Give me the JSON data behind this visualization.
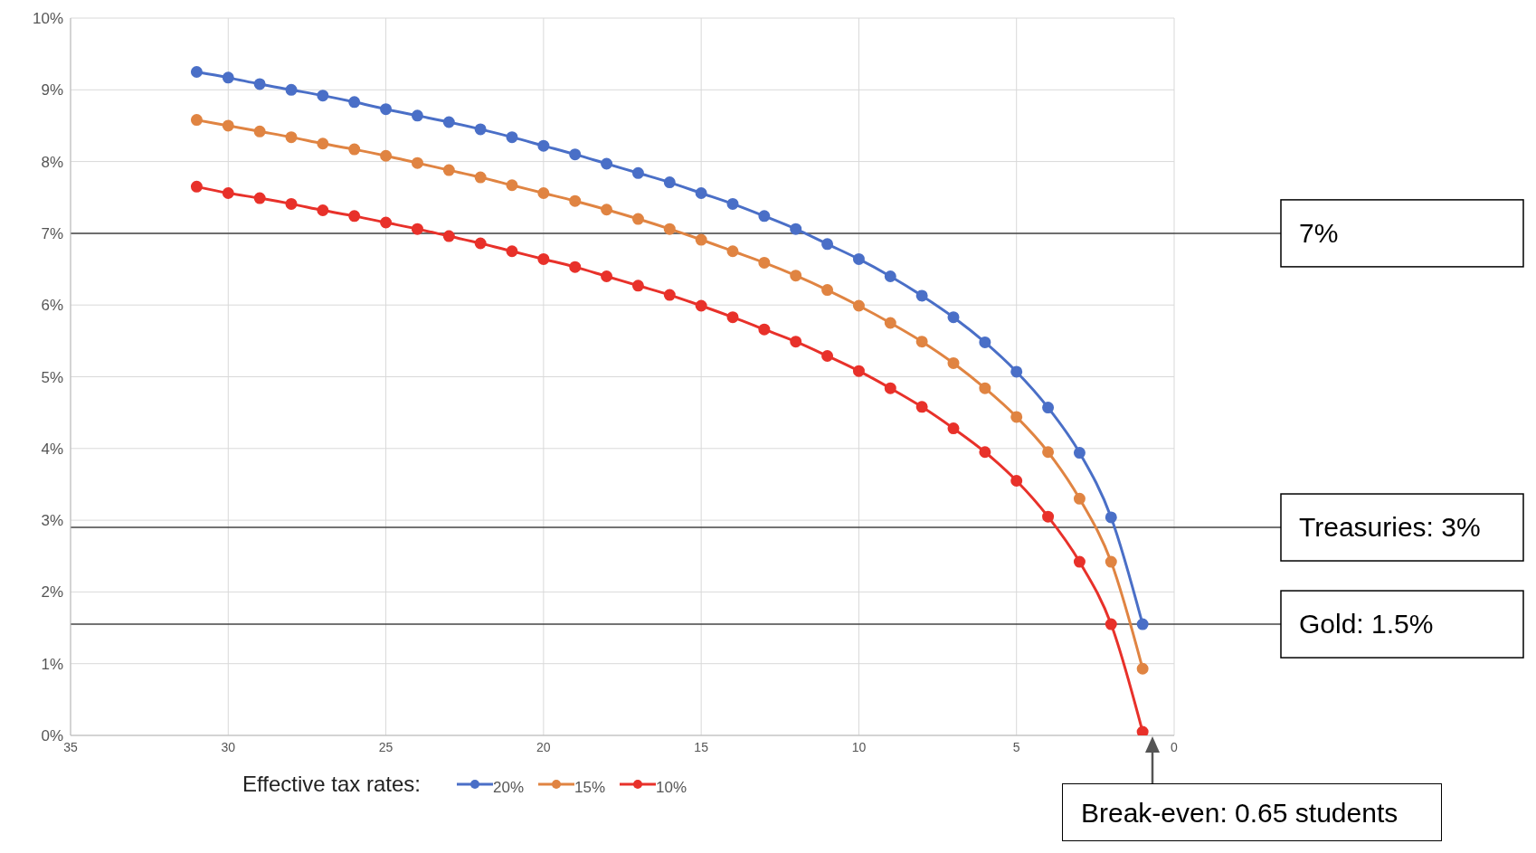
{
  "chart_data": {
    "type": "line",
    "x": [
      31,
      30,
      29,
      28,
      27,
      26,
      25,
      24,
      23,
      22,
      21,
      20,
      19,
      18,
      17,
      16,
      15,
      14,
      13,
      12,
      11,
      10,
      9,
      8,
      7,
      6,
      5,
      4,
      3,
      2,
      1
    ],
    "series": [
      {
        "name": "20%",
        "color": "#4a6fc7",
        "values": [
          9.25,
          9.17,
          9.08,
          9.0,
          8.92,
          8.83,
          8.73,
          8.64,
          8.55,
          8.45,
          8.34,
          8.22,
          8.1,
          7.97,
          7.84,
          7.71,
          7.56,
          7.41,
          7.24,
          7.06,
          6.85,
          6.64,
          6.4,
          6.13,
          5.83,
          5.48,
          5.07,
          4.57,
          3.94,
          3.04,
          1.55
        ]
      },
      {
        "name": "15%",
        "color": "#e08442",
        "values": [
          8.58,
          8.5,
          8.42,
          8.34,
          8.25,
          8.17,
          8.08,
          7.98,
          7.88,
          7.78,
          7.67,
          7.56,
          7.45,
          7.33,
          7.2,
          7.06,
          6.91,
          6.75,
          6.59,
          6.41,
          6.21,
          5.99,
          5.75,
          5.49,
          5.19,
          4.84,
          4.44,
          3.95,
          3.3,
          2.42,
          0.93
        ]
      },
      {
        "name": "10%",
        "color": "#e8312a",
        "values": [
          7.65,
          7.56,
          7.49,
          7.41,
          7.32,
          7.24,
          7.15,
          7.06,
          6.96,
          6.86,
          6.75,
          6.64,
          6.53,
          6.4,
          6.27,
          6.14,
          5.99,
          5.83,
          5.66,
          5.49,
          5.29,
          5.08,
          4.84,
          4.58,
          4.28,
          3.95,
          3.55,
          3.05,
          2.42,
          1.55,
          0.05
        ]
      }
    ],
    "xlim": [
      35,
      0
    ],
    "xticks": [
      35,
      30,
      25,
      20,
      15,
      10,
      5,
      0
    ],
    "ylim": [
      0,
      10
    ],
    "yticks": [
      {
        "value": 0,
        "label": "0%"
      },
      {
        "value": 1,
        "label": "1%"
      },
      {
        "value": 2,
        "label": "2%"
      },
      {
        "value": 3,
        "label": "3%"
      },
      {
        "value": 4,
        "label": "4%"
      },
      {
        "value": 5,
        "label": "5%"
      },
      {
        "value": 6,
        "label": "6%"
      },
      {
        "value": 7,
        "label": "7%"
      },
      {
        "value": 8,
        "label": "8%"
      },
      {
        "value": 9,
        "label": "9%"
      },
      {
        "value": 10,
        "label": "10%"
      }
    ],
    "ref_lines": [
      {
        "axis": "y",
        "value": 7,
        "label": "7%",
        "color": "#444444"
      },
      {
        "axis": "y",
        "value": 2.9,
        "label": "Treasuries: 3%",
        "color": "#444444"
      },
      {
        "axis": "y",
        "value": 1.55,
        "label": "Gold: 1.5%",
        "color": "#444444"
      }
    ],
    "annotations": [
      "Break-even: 0.65 students"
    ],
    "legend_title": "Effective tax rates:",
    "legend": "bottom",
    "grid": true,
    "marker": "circle",
    "line_style": "solid"
  }
}
